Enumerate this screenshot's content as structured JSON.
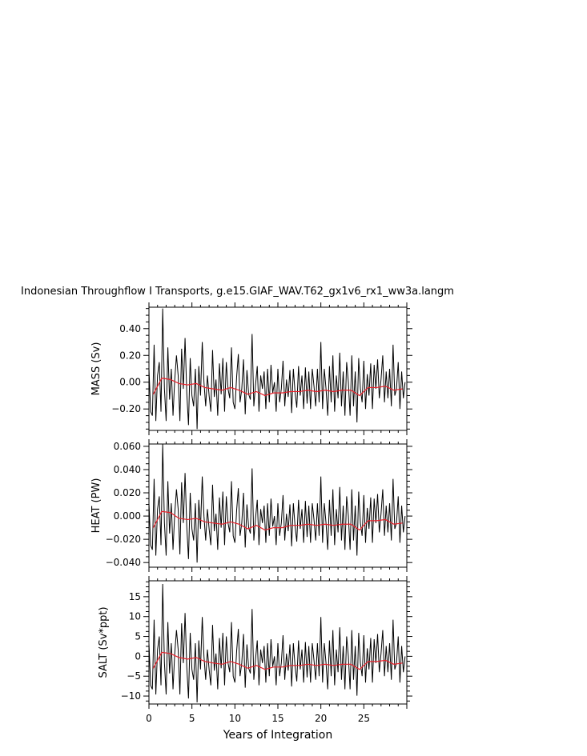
{
  "figure": {
    "title": "Indonesian Throughflow I Transports, g.e15.GIAF_WAV.T62_gx1v6_rx1_ww3a.langm",
    "xlabel": "Years of Integration"
  },
  "colors": {
    "monthly": "#000000",
    "annual": "#e8202a",
    "axes": "#000000"
  },
  "chart_data": [
    {
      "type": "line",
      "ylabel": "MASS (Sv)",
      "xlim": [
        0,
        30
      ],
      "ylim": [
        -0.36,
        0.56
      ],
      "xticks": [
        0,
        5,
        10,
        15,
        20,
        25
      ],
      "xtick_labels": [
        "0",
        "5",
        "10",
        "15",
        "20",
        "25"
      ],
      "yticks": [
        -0.2,
        0.0,
        0.2,
        0.4
      ],
      "ytick_labels": [
        "−0.20",
        "0.00",
        "0.20",
        "0.40"
      ],
      "annual_x": [
        0.5,
        1.5,
        2.5,
        3.5,
        4.5,
        5.5,
        6.5,
        7.5,
        8.5,
        9.5,
        10.5,
        11.5,
        12.5,
        13.5,
        14.5,
        15.5,
        16.5,
        17.5,
        18.5,
        19.5,
        20.5,
        21.5,
        22.5,
        23.5,
        24.5,
        25.5,
        26.5,
        27.5,
        28.5,
        29.5
      ],
      "annual_y": [
        -0.09,
        0.03,
        0.02,
        -0.01,
        -0.02,
        -0.01,
        -0.04,
        -0.05,
        -0.06,
        -0.04,
        -0.06,
        -0.09,
        -0.07,
        -0.1,
        -0.08,
        -0.08,
        -0.07,
        -0.07,
        -0.06,
        -0.07,
        -0.06,
        -0.07,
        -0.06,
        -0.06,
        -0.1,
        -0.04,
        -0.04,
        -0.03,
        -0.06,
        -0.05
      ],
      "monthly_x": [
        0.0,
        0.2,
        0.4,
        0.6,
        0.8,
        1.0,
        1.2,
        1.4,
        1.6,
        1.8,
        2.0,
        2.2,
        2.4,
        2.6,
        2.8,
        3.0,
        3.2,
        3.4,
        3.6,
        3.8,
        4.0,
        4.2,
        4.4,
        4.6,
        4.8,
        5.0,
        5.2,
        5.4,
        5.6,
        5.8,
        6.0,
        6.2,
        6.4,
        6.6,
        6.8,
        7.0,
        7.2,
        7.4,
        7.6,
        7.8,
        8.0,
        8.2,
        8.4,
        8.6,
        8.8,
        9.0,
        9.2,
        9.4,
        9.6,
        9.8,
        10.0,
        10.2,
        10.4,
        10.6,
        10.8,
        11.0,
        11.2,
        11.4,
        11.6,
        11.8,
        12.0,
        12.2,
        12.4,
        12.6,
        12.8,
        13.0,
        13.2,
        13.4,
        13.6,
        13.8,
        14.0,
        14.2,
        14.4,
        14.6,
        14.8,
        15.0,
        15.2,
        15.4,
        15.6,
        15.8,
        16.0,
        16.2,
        16.4,
        16.6,
        16.8,
        17.0,
        17.2,
        17.4,
        17.6,
        17.8,
        18.0,
        18.2,
        18.4,
        18.6,
        18.8,
        19.0,
        19.2,
        19.4,
        19.6,
        19.8,
        20.0,
        20.2,
        20.4,
        20.6,
        20.8,
        21.0,
        21.2,
        21.4,
        21.6,
        21.8,
        22.0,
        22.2,
        22.4,
        22.6,
        22.8,
        23.0,
        23.2,
        23.4,
        23.6,
        23.8,
        24.0,
        24.2,
        24.4,
        24.6,
        24.8,
        25.0,
        25.2,
        25.4,
        25.6,
        25.8,
        26.0,
        26.2,
        26.4,
        26.6,
        26.8,
        27.0,
        27.2,
        27.4,
        27.6,
        27.8,
        28.0,
        28.2,
        28.4,
        28.6,
        28.8,
        29.0,
        29.2,
        29.4,
        29.6,
        29.8
      ],
      "monthly_y": [
        0.1,
        -0.22,
        -0.25,
        0.28,
        -0.29,
        0.05,
        0.15,
        -0.22,
        0.55,
        -0.05,
        -0.29,
        0.26,
        -0.13,
        0.1,
        -0.25,
        0.02,
        0.2,
        0.05,
        -0.29,
        0.25,
        -0.05,
        0.33,
        -0.08,
        -0.32,
        0.18,
        -0.1,
        -0.18,
        0.1,
        -0.35,
        0.12,
        -0.1,
        0.3,
        0.0,
        -0.18,
        0.05,
        -0.1,
        -0.22,
        0.24,
        -0.11,
        0.02,
        -0.25,
        0.14,
        -0.09,
        0.18,
        -0.22,
        0.15,
        -0.05,
        -0.12,
        0.26,
        -0.15,
        -0.2,
        0.04,
        0.21,
        -0.15,
        -0.05,
        0.17,
        -0.24,
        0.09,
        -0.09,
        -0.13,
        0.36,
        -0.18,
        -0.02,
        0.12,
        -0.22,
        0.05,
        -0.05,
        0.08,
        -0.2,
        0.1,
        -0.15,
        0.13,
        -0.08,
        0.0,
        -0.22,
        0.1,
        -0.15,
        -0.05,
        0.16,
        -0.18,
        0.02,
        -0.11,
        0.09,
        -0.23,
        0.1,
        -0.08,
        -0.19,
        0.12,
        -0.1,
        0.05,
        -0.2,
        0.11,
        -0.16,
        0.08,
        -0.2,
        0.1,
        -0.03,
        -0.18,
        0.1,
        -0.15,
        0.3,
        -0.2,
        0.1,
        -0.05,
        -0.25,
        0.12,
        -0.15,
        0.2,
        -0.22,
        0.05,
        -0.12,
        0.22,
        -0.18,
        0.08,
        -0.25,
        0.15,
        0.0,
        -0.25,
        0.2,
        -0.18,
        0.08,
        -0.3,
        0.18,
        -0.05,
        -0.15,
        0.16,
        -0.2,
        0.06,
        -0.1,
        0.14,
        -0.2,
        0.13,
        -0.05,
        0.17,
        -0.12,
        0.02,
        0.2,
        -0.15,
        0.08,
        -0.12,
        0.1,
        -0.18,
        0.28,
        -0.1,
        -0.05,
        0.15,
        -0.2,
        0.08,
        -0.12,
        0.0
      ]
    },
    {
      "type": "line",
      "ylabel": "HEAT (PW)",
      "xlim": [
        0,
        30
      ],
      "ylim": [
        -0.044,
        0.062
      ],
      "xticks": [
        0,
        5,
        10,
        15,
        20,
        25
      ],
      "xtick_labels": [
        "0",
        "5",
        "10",
        "15",
        "20",
        "25"
      ],
      "yticks": [
        -0.04,
        -0.02,
        0.0,
        0.02,
        0.04,
        0.06
      ],
      "ytick_labels": [
        "−0.040",
        "−0.020",
        "0.000",
        "0.020",
        "0.040",
        "0.060"
      ],
      "annual_x": [
        0.5,
        1.5,
        2.5,
        3.5,
        4.5,
        5.5,
        6.5,
        7.5,
        8.5,
        9.5,
        10.5,
        11.5,
        12.5,
        13.5,
        14.5,
        15.5,
        16.5,
        17.5,
        18.5,
        19.5,
        20.5,
        21.5,
        22.5,
        23.5,
        24.5,
        25.5,
        26.5,
        27.5,
        28.5,
        29.5
      ],
      "annual_y": [
        -0.01,
        0.004,
        0.003,
        -0.002,
        -0.003,
        -0.002,
        -0.005,
        -0.006,
        -0.007,
        -0.005,
        -0.007,
        -0.011,
        -0.008,
        -0.012,
        -0.01,
        -0.01,
        -0.008,
        -0.008,
        -0.007,
        -0.008,
        -0.007,
        -0.008,
        -0.007,
        -0.007,
        -0.012,
        -0.004,
        -0.004,
        -0.003,
        -0.007,
        -0.006
      ],
      "monthly_x": [
        0.0,
        0.2,
        0.4,
        0.6,
        0.8,
        1.0,
        1.2,
        1.4,
        1.6,
        1.8,
        2.0,
        2.2,
        2.4,
        2.6,
        2.8,
        3.0,
        3.2,
        3.4,
        3.6,
        3.8,
        4.0,
        4.2,
        4.4,
        4.6,
        4.8,
        5.0,
        5.2,
        5.4,
        5.6,
        5.8,
        6.0,
        6.2,
        6.4,
        6.6,
        6.8,
        7.0,
        7.2,
        7.4,
        7.6,
        7.8,
        8.0,
        8.2,
        8.4,
        8.6,
        8.8,
        9.0,
        9.2,
        9.4,
        9.6,
        9.8,
        10.0,
        10.2,
        10.4,
        10.6,
        10.8,
        11.0,
        11.2,
        11.4,
        11.6,
        11.8,
        12.0,
        12.2,
        12.4,
        12.6,
        12.8,
        13.0,
        13.2,
        13.4,
        13.6,
        13.8,
        14.0,
        14.2,
        14.4,
        14.6,
        14.8,
        15.0,
        15.2,
        15.4,
        15.6,
        15.8,
        16.0,
        16.2,
        16.4,
        16.6,
        16.8,
        17.0,
        17.2,
        17.4,
        17.6,
        17.8,
        18.0,
        18.2,
        18.4,
        18.6,
        18.8,
        19.0,
        19.2,
        19.4,
        19.6,
        19.8,
        20.0,
        20.2,
        20.4,
        20.6,
        20.8,
        21.0,
        21.2,
        21.4,
        21.6,
        21.8,
        22.0,
        22.2,
        22.4,
        22.6,
        22.8,
        23.0,
        23.2,
        23.4,
        23.6,
        23.8,
        24.0,
        24.2,
        24.4,
        24.6,
        24.8,
        25.0,
        25.2,
        25.4,
        25.6,
        25.8,
        26.0,
        26.2,
        26.4,
        26.6,
        26.8,
        27.0,
        27.2,
        27.4,
        27.6,
        27.8,
        28.0,
        28.2,
        28.4,
        28.6,
        28.8,
        29.0,
        29.2,
        29.4,
        29.6,
        29.8
      ],
      "monthly_y": [
        0.011,
        -0.025,
        -0.029,
        0.032,
        -0.034,
        0.006,
        0.017,
        -0.025,
        0.062,
        -0.006,
        -0.034,
        0.03,
        -0.015,
        0.011,
        -0.029,
        0.002,
        0.023,
        0.006,
        -0.033,
        0.029,
        -0.006,
        0.037,
        -0.009,
        -0.037,
        0.02,
        -0.011,
        -0.021,
        0.011,
        -0.04,
        0.014,
        -0.011,
        0.034,
        0.0,
        -0.021,
        0.006,
        -0.011,
        -0.025,
        0.027,
        -0.013,
        0.002,
        -0.029,
        0.016,
        -0.01,
        0.021,
        -0.025,
        0.017,
        -0.006,
        -0.014,
        0.03,
        -0.017,
        -0.023,
        0.005,
        0.024,
        -0.017,
        -0.006,
        0.02,
        -0.027,
        0.01,
        -0.01,
        -0.015,
        0.041,
        -0.021,
        -0.002,
        0.014,
        -0.025,
        0.006,
        -0.006,
        0.009,
        -0.023,
        0.011,
        -0.017,
        0.015,
        -0.009,
        0.0,
        -0.025,
        0.011,
        -0.017,
        -0.006,
        0.018,
        -0.021,
        0.002,
        -0.013,
        0.01,
        -0.026,
        0.011,
        -0.009,
        -0.022,
        0.014,
        -0.011,
        0.006,
        -0.023,
        0.013,
        -0.018,
        0.009,
        -0.023,
        0.011,
        -0.003,
        -0.021,
        0.011,
        -0.017,
        0.034,
        -0.023,
        0.011,
        -0.006,
        -0.029,
        0.014,
        -0.017,
        0.023,
        -0.025,
        0.006,
        -0.014,
        0.025,
        -0.021,
        0.009,
        -0.029,
        0.017,
        0.0,
        -0.029,
        0.023,
        -0.021,
        0.009,
        -0.034,
        0.021,
        -0.006,
        -0.017,
        0.018,
        -0.023,
        0.007,
        -0.011,
        0.016,
        -0.023,
        0.015,
        -0.006,
        0.019,
        -0.014,
        0.002,
        0.023,
        -0.017,
        0.009,
        -0.014,
        0.011,
        -0.021,
        0.032,
        -0.011,
        -0.006,
        0.017,
        -0.023,
        0.009,
        -0.014,
        0.0
      ]
    },
    {
      "type": "line",
      "ylabel": "SALT (Sv*ppt)",
      "xlim": [
        0,
        30
      ],
      "ylim": [
        -12,
        19
      ],
      "xticks": [
        0,
        5,
        10,
        15,
        20,
        25
      ],
      "xtick_labels": [
        "0",
        "5",
        "10",
        "15",
        "20",
        "25"
      ],
      "yticks": [
        -10,
        -5,
        0,
        5,
        10,
        15
      ],
      "ytick_labels": [
        "−10",
        "−5",
        "0",
        "5",
        "10",
        "15"
      ],
      "annual_x": [
        0.5,
        1.5,
        2.5,
        3.5,
        4.5,
        5.5,
        6.5,
        7.5,
        8.5,
        9.5,
        10.5,
        11.5,
        12.5,
        13.5,
        14.5,
        15.5,
        16.5,
        17.5,
        18.5,
        19.5,
        20.5,
        21.5,
        22.5,
        23.5,
        24.5,
        25.5,
        26.5,
        27.5,
        28.5,
        29.5
      ],
      "annual_y": [
        -3.0,
        1.0,
        0.7,
        -0.3,
        -0.7,
        -0.3,
        -1.3,
        -1.7,
        -2.0,
        -1.3,
        -2.0,
        -3.0,
        -2.3,
        -3.3,
        -2.7,
        -2.7,
        -2.3,
        -2.3,
        -2.0,
        -2.3,
        -2.0,
        -2.3,
        -2.0,
        -2.0,
        -3.3,
        -1.3,
        -1.3,
        -1.0,
        -2.0,
        -1.7
      ],
      "monthly_x": [
        0.0,
        0.2,
        0.4,
        0.6,
        0.8,
        1.0,
        1.2,
        1.4,
        1.6,
        1.8,
        2.0,
        2.2,
        2.4,
        2.6,
        2.8,
        3.0,
        3.2,
        3.4,
        3.6,
        3.8,
        4.0,
        4.2,
        4.4,
        4.6,
        4.8,
        5.0,
        5.2,
        5.4,
        5.6,
        5.8,
        6.0,
        6.2,
        6.4,
        6.6,
        6.8,
        7.0,
        7.2,
        7.4,
        7.6,
        7.8,
        8.0,
        8.2,
        8.4,
        8.6,
        8.8,
        9.0,
        9.2,
        9.4,
        9.6,
        9.8,
        10.0,
        10.2,
        10.4,
        10.6,
        10.8,
        11.0,
        11.2,
        11.4,
        11.6,
        11.8,
        12.0,
        12.2,
        12.4,
        12.6,
        12.8,
        13.0,
        13.2,
        13.4,
        13.6,
        13.8,
        14.0,
        14.2,
        14.4,
        14.6,
        14.8,
        15.0,
        15.2,
        15.4,
        15.6,
        15.8,
        16.0,
        16.2,
        16.4,
        16.6,
        16.8,
        17.0,
        17.2,
        17.4,
        17.6,
        17.8,
        18.0,
        18.2,
        18.4,
        18.6,
        18.8,
        19.0,
        19.2,
        19.4,
        19.6,
        19.8,
        20.0,
        20.2,
        20.4,
        20.6,
        20.8,
        21.0,
        21.2,
        21.4,
        21.6,
        21.8,
        22.0,
        22.2,
        22.4,
        22.6,
        22.8,
        23.0,
        23.2,
        23.4,
        23.6,
        23.8,
        24.0,
        24.2,
        24.4,
        24.6,
        24.8,
        25.0,
        25.2,
        25.4,
        25.6,
        25.8,
        26.0,
        26.2,
        26.4,
        26.6,
        26.8,
        27.0,
        27.2,
        27.4,
        27.6,
        27.8,
        28.0,
        28.2,
        28.4,
        28.6,
        28.8,
        29.0,
        29.2,
        29.4,
        29.6,
        29.8
      ],
      "monthly_y": [
        3.3,
        -7.3,
        -8.3,
        9.2,
        -9.6,
        1.7,
        5.0,
        -7.3,
        18.2,
        -1.7,
        -9.6,
        8.6,
        -4.3,
        3.3,
        -8.3,
        0.7,
        6.6,
        1.7,
        -9.6,
        8.3,
        -1.7,
        10.9,
        -2.6,
        -10.6,
        5.9,
        -3.3,
        -5.9,
        3.3,
        -11.6,
        4.0,
        -3.3,
        9.9,
        0.0,
        -5.9,
        1.7,
        -3.3,
        -7.3,
        7.9,
        -3.6,
        0.7,
        -8.3,
        4.6,
        -3.0,
        5.9,
        -7.3,
        5.0,
        -1.7,
        -4.0,
        8.6,
        -5.0,
        -6.6,
        1.3,
        6.9,
        -5.0,
        -1.7,
        5.6,
        -7.9,
        3.0,
        -3.0,
        -4.3,
        11.9,
        -5.9,
        -0.7,
        4.0,
        -7.3,
        1.7,
        -1.7,
        2.6,
        -6.6,
        3.3,
        -5.0,
        4.3,
        -2.6,
        0.0,
        -7.3,
        3.3,
        -5.0,
        -1.7,
        5.3,
        -5.9,
        0.7,
        -3.6,
        3.0,
        -7.6,
        3.3,
        -2.6,
        -6.3,
        4.0,
        -3.3,
        1.7,
        -6.6,
        3.6,
        -5.3,
        2.6,
        -6.6,
        3.3,
        -1.0,
        -5.9,
        3.3,
        -5.0,
        9.9,
        -6.6,
        3.3,
        -1.7,
        -8.3,
        4.0,
        -5.0,
        6.6,
        -7.3,
        1.7,
        -4.0,
        7.3,
        -5.9,
        2.6,
        -8.3,
        5.0,
        0.0,
        -8.3,
        6.6,
        -5.9,
        2.6,
        -9.9,
        5.9,
        -1.7,
        -5.0,
        5.3,
        -6.6,
        2.0,
        -3.3,
        4.6,
        -6.6,
        4.3,
        -1.7,
        5.6,
        -4.0,
        0.7,
        6.6,
        -5.0,
        2.6,
        -4.0,
        3.3,
        -5.9,
        9.2,
        -3.3,
        -1.7,
        5.0,
        -6.6,
        2.6,
        -4.0,
        0.0
      ]
    }
  ]
}
